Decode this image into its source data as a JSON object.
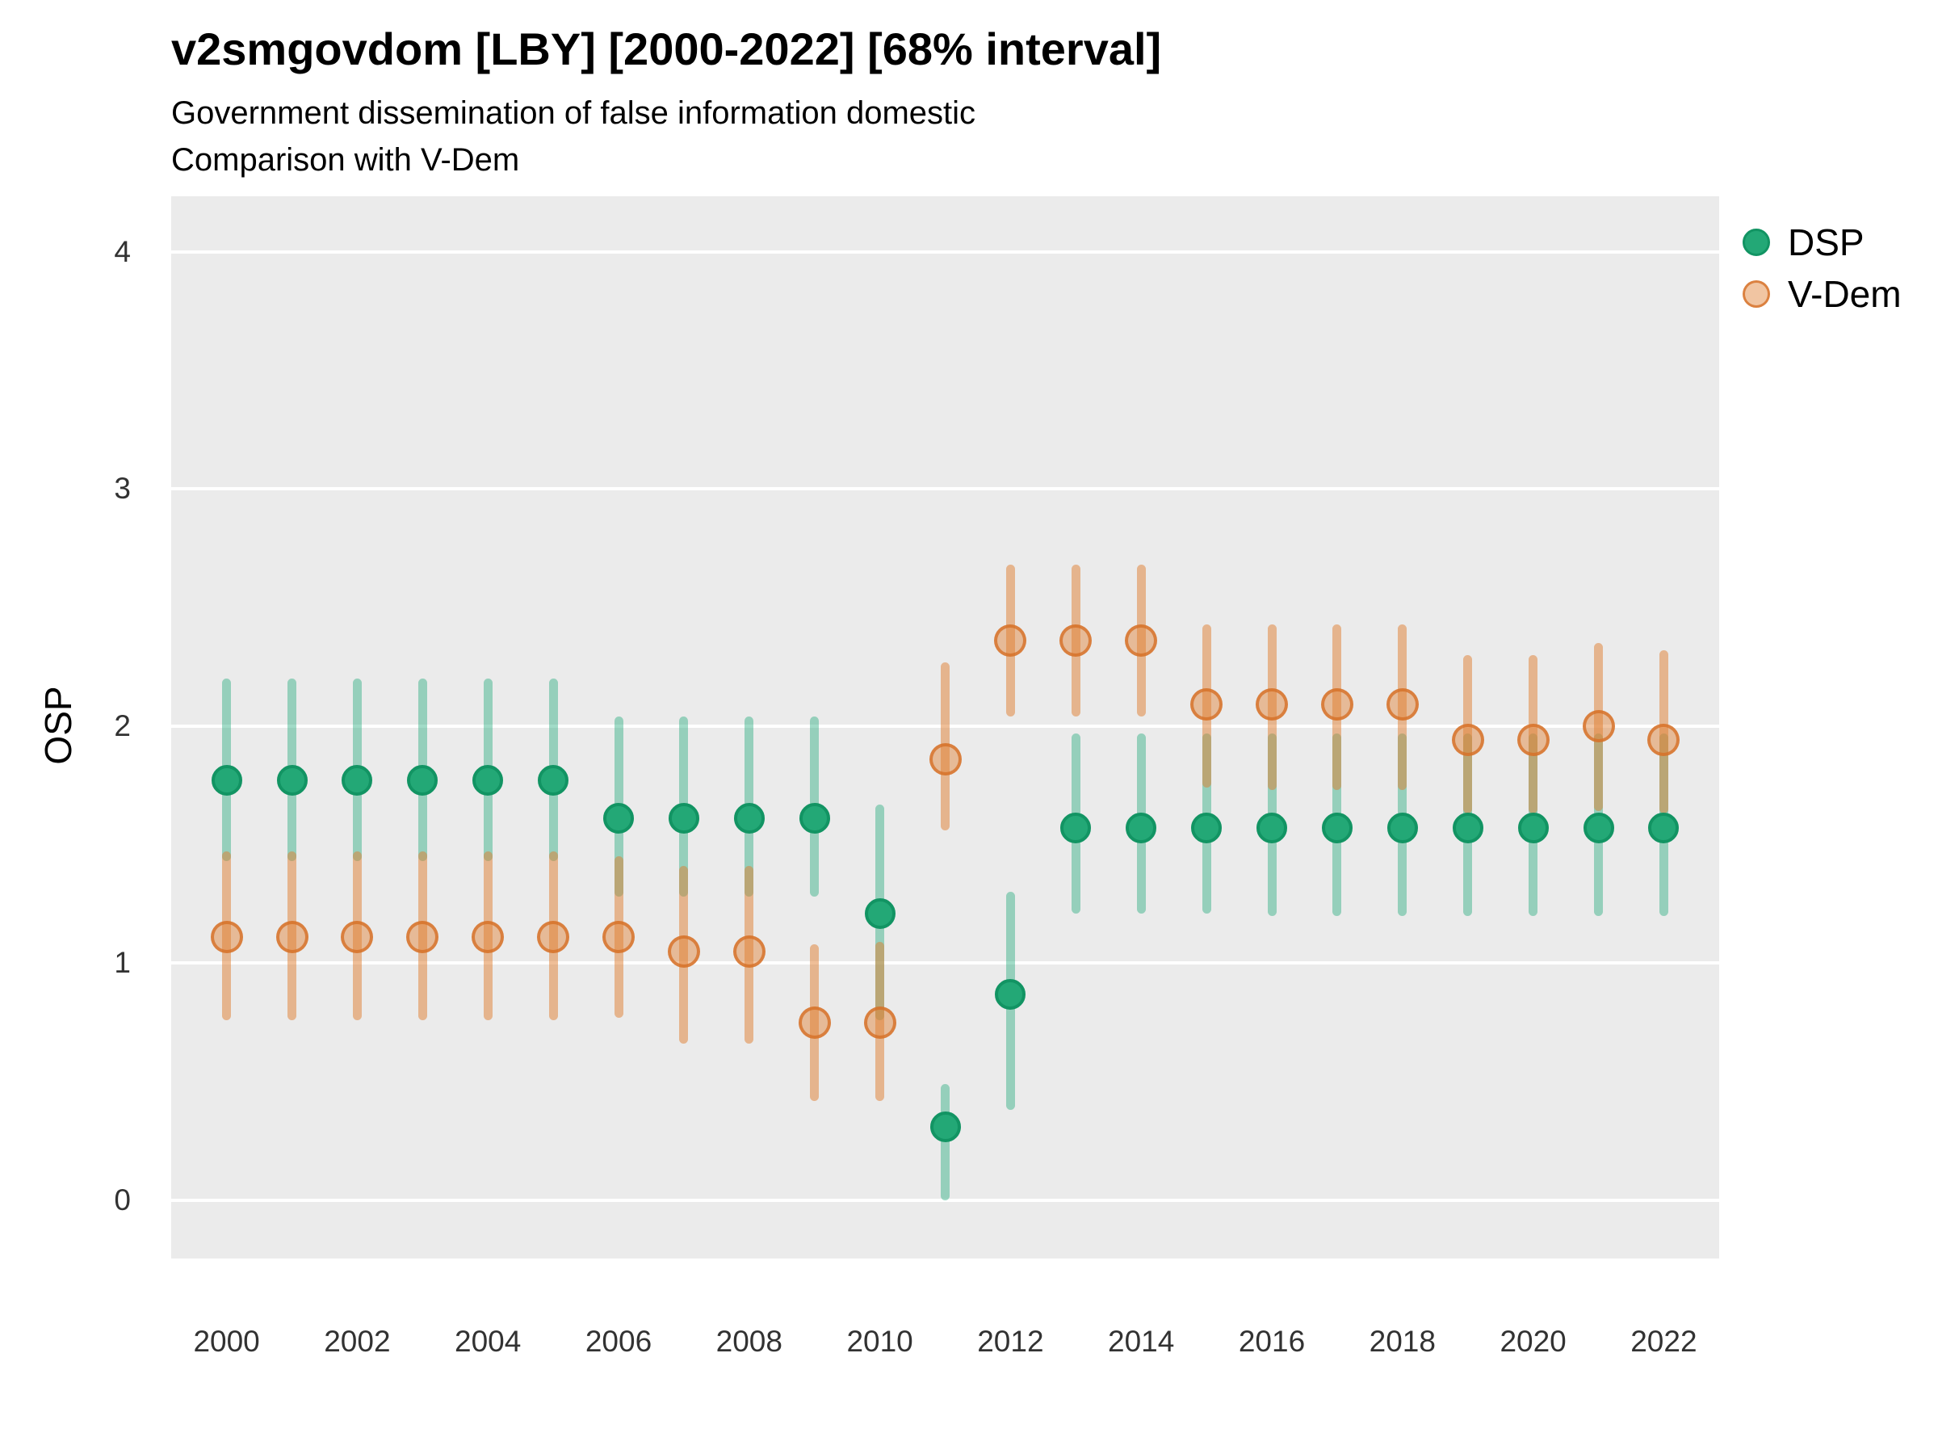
{
  "header": {
    "title": "v2smgovdom [LBY] [2000-2022] [68% interval]",
    "subtitle": "Government dissemination of false information domestic",
    "subtitle2": "Comparison with V-Dem"
  },
  "colors": {
    "panel_bg": "#EBEBEB",
    "grid": "#FFFFFF",
    "dsp": "#23A876",
    "dsp_dark": "#129463",
    "dsp_bar": "rgba(31,169,122,0.42)",
    "vdem_bar": "rgba(224,126,48,0.50)",
    "vdem_fill": "rgba(224,126,48,0.45)",
    "vdem_stroke": "rgba(214,112,40,0.80)",
    "tick_text": "#323232",
    "text": "#000000"
  },
  "chart_data": {
    "type": "scatter",
    "title": "v2smgovdom [LBY] [2000-2022] [68% interval]",
    "subtitle": "Government dissemination of false information domestic",
    "subtitle2": "Comparison with V-Dem",
    "xlabel": "",
    "ylabel": "OSP",
    "ylim": [
      0,
      4
    ],
    "yticks": [
      0,
      1,
      2,
      3,
      4
    ],
    "xticks": [
      2000,
      2002,
      2004,
      2006,
      2008,
      2010,
      2012,
      2014,
      2016,
      2018,
      2020,
      2022
    ],
    "grid": true,
    "legend_position": "right",
    "interval_label": "68% interval",
    "x": [
      2000,
      2001,
      2002,
      2003,
      2004,
      2005,
      2006,
      2007,
      2008,
      2009,
      2010,
      2011,
      2012,
      2013,
      2014,
      2015,
      2016,
      2017,
      2018,
      2019,
      2020,
      2021,
      2022
    ],
    "series": [
      {
        "name": "DSP",
        "values": [
          1.77,
          1.77,
          1.77,
          1.77,
          1.77,
          1.77,
          1.61,
          1.61,
          1.61,
          1.61,
          1.21,
          0.31,
          0.87,
          1.57,
          1.57,
          1.57,
          1.57,
          1.57,
          1.57,
          1.57,
          1.57,
          1.57,
          1.57
        ],
        "lo": [
          1.43,
          1.43,
          1.43,
          1.43,
          1.43,
          1.43,
          1.28,
          1.28,
          1.28,
          1.28,
          0.76,
          0.0,
          0.38,
          1.21,
          1.21,
          1.21,
          1.2,
          1.2,
          1.2,
          1.2,
          1.2,
          1.2,
          1.2
        ],
        "hi": [
          2.2,
          2.2,
          2.2,
          2.2,
          2.2,
          2.2,
          2.04,
          2.04,
          2.04,
          2.04,
          1.67,
          0.49,
          1.3,
          1.97,
          1.97,
          1.97,
          1.97,
          1.97,
          1.97,
          1.97,
          1.97,
          1.97,
          1.97
        ]
      },
      {
        "name": "V-Dem",
        "values": [
          1.11,
          1.11,
          1.11,
          1.11,
          1.11,
          1.11,
          1.11,
          1.05,
          1.05,
          0.75,
          0.75,
          1.86,
          2.36,
          2.36,
          2.36,
          2.09,
          2.09,
          2.09,
          2.09,
          1.94,
          1.94,
          2.0,
          1.94
        ],
        "lo": [
          0.76,
          0.76,
          0.76,
          0.76,
          0.76,
          0.76,
          0.77,
          0.66,
          0.66,
          0.42,
          0.42,
          1.56,
          2.04,
          2.04,
          2.04,
          1.74,
          1.73,
          1.73,
          1.73,
          1.63,
          1.63,
          1.64,
          1.63
        ],
        "hi": [
          1.47,
          1.47,
          1.47,
          1.47,
          1.47,
          1.47,
          1.45,
          1.41,
          1.41,
          1.08,
          1.09,
          2.27,
          2.68,
          2.68,
          2.68,
          2.43,
          2.43,
          2.43,
          2.43,
          2.3,
          2.3,
          2.35,
          2.32
        ]
      }
    ]
  }
}
